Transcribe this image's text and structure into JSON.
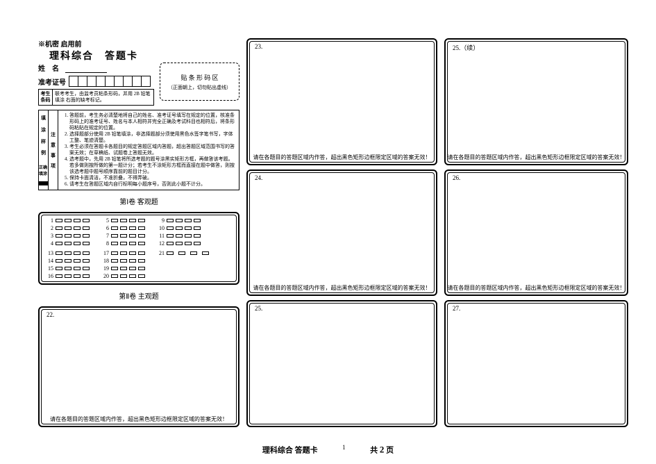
{
  "header": {
    "secret": "※机密 启用前",
    "title": "理科综合　答题卡",
    "name_label": "姓　名",
    "ticket_label": "准考证号",
    "ticket_cells": 9,
    "student_box_label": "考生\n条码",
    "student_box_text": "联考考生，由监考员粘条形码，并用 2B 铅笔填涂\n右面的缺考标记。",
    "barcode_title": "贴 条 形 码 区",
    "barcode_sub": "（正面朝上，切勿贴出虚线）"
  },
  "instr": {
    "left_col": [
      "填",
      "涂",
      "样",
      "例"
    ],
    "mid_label": "正确填涂",
    "mid2": [
      "注",
      "意",
      "事",
      "项"
    ],
    "items": [
      "答题前，考生务必清楚地将自己的姓名、准考证号填写在规定的位置，核准条形码上的准考证号、姓名与本人相符并完全正确及考试科目也相符后，将条形码粘贴在规定的位置。",
      "选择题部分使用 2B 铅笔填涂，非选择题部分须使用黑色水签字笔书写，字体工整、笔迹清楚。",
      "考生必须在答题卡各题目的规定答题区域内答题，超出答题区域范围书写的答案无效；在草稿纸、试题卷上答题无效。",
      "选考题中，先用 2B 铅笔将所选考题的题号涂黑实矩形方框，再做答该考题。若多做则按所做的第一题计分；若考生不涂矩形方框而直接在题中做答，则按该选考题中题号顺序靠前的题目计分。",
      "保持卡面清洁，不准折叠，不得弄破。",
      "请考生在答题区域内自行标明每小题序号，否则此小题不计分。"
    ]
  },
  "sections": {
    "s1": "第Ⅰ卷 客观题",
    "s2": "第Ⅱ卷 主观题"
  },
  "objective": {
    "options4": [
      "A",
      "B",
      "C",
      "D"
    ],
    "block1": {
      "colA": [
        1,
        2,
        3,
        4
      ],
      "colB": [
        5,
        6,
        7,
        8
      ],
      "colC": [
        9,
        10,
        11,
        12
      ]
    },
    "block2": {
      "colA": [
        13,
        14,
        15,
        16
      ],
      "colB": [
        17,
        18,
        19,
        20
      ],
      "colC_single": 21
    }
  },
  "answers": {
    "foot": "请在各题目的答题区域内作答，超出黑色矩形边框限定区域的答案无效！",
    "col1": [
      {
        "n": "22."
      }
    ],
    "col2": [
      {
        "n": "23."
      },
      {
        "n": "24."
      },
      {
        "n": "25."
      }
    ],
    "col3": [
      {
        "n": "25.（续）"
      },
      {
        "n": "26."
      },
      {
        "n": "27."
      }
    ]
  },
  "footer": {
    "title": "理科综合 答题卡",
    "page_current": "1",
    "total_label_a": "共",
    "total_pages": "2",
    "total_label_b": "页"
  },
  "style": {
    "border_color": "#000000",
    "bg": "#ffffff"
  }
}
